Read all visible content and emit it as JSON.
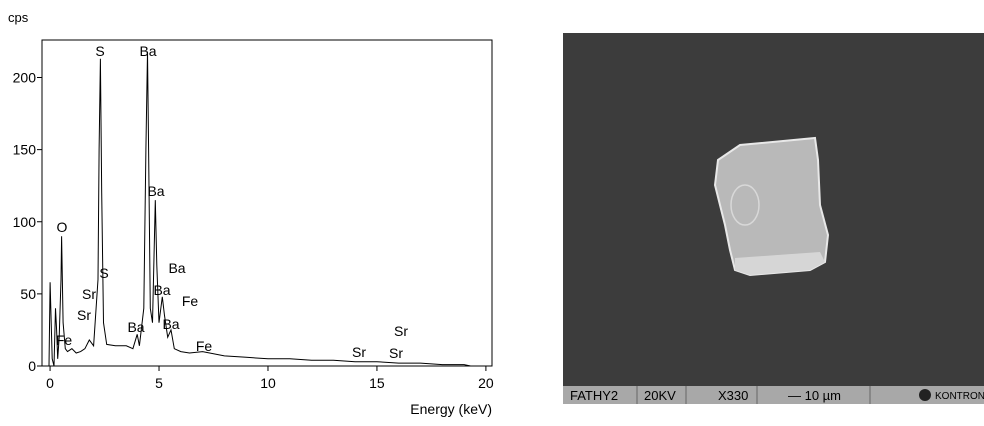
{
  "chart_data": {
    "type": "line",
    "y_label": "cps",
    "x_label": "Energy (keV)",
    "xlim": [
      -0.37,
      20.28
    ],
    "ylim": [
      0,
      226
    ],
    "xticks": [
      0,
      5,
      10,
      15,
      20
    ],
    "yticks": [
      0,
      50,
      100,
      150,
      200
    ],
    "color": "#000000",
    "x": [
      -0.05,
      0,
      0.05,
      0.1,
      0.18,
      0.25,
      0.3,
      0.35,
      0.42,
      0.5,
      0.53,
      0.6,
      0.7,
      0.8,
      1.0,
      1.2,
      1.4,
      1.6,
      1.8,
      2.0,
      2.2,
      2.25,
      2.31,
      2.37,
      2.45,
      2.6,
      3.0,
      3.5,
      3.8,
      4.0,
      4.1,
      4.3,
      4.4,
      4.47,
      4.52,
      4.6,
      4.7,
      4.83,
      4.9,
      5.0,
      5.15,
      5.25,
      5.4,
      5.55,
      5.7,
      6.0,
      6.4,
      7.0,
      8,
      9,
      10,
      11,
      12,
      13,
      14,
      15,
      16,
      17,
      18,
      19,
      19.3
    ],
    "values": [
      0,
      58,
      30,
      5,
      0,
      40,
      25,
      5,
      20,
      60,
      90,
      30,
      12,
      10,
      12,
      9,
      10,
      12,
      18,
      14,
      60,
      150,
      213,
      120,
      30,
      15,
      14,
      14,
      12,
      22,
      14,
      40,
      150,
      218,
      150,
      40,
      30,
      115,
      70,
      30,
      48,
      35,
      20,
      25,
      12,
      10,
      9,
      10,
      7,
      6,
      5,
      5,
      4,
      4,
      3,
      3,
      2,
      2,
      1,
      1,
      0
    ],
    "annotations": [
      "S",
      "Ba",
      "Ba",
      "O",
      "S",
      "Ba",
      "Sr",
      "Ba",
      "Fe",
      "Sr",
      "Ba",
      "Ba",
      "Fe",
      "Fe",
      "Sr",
      "Sr",
      "Sr"
    ]
  },
  "micrograph": {
    "labels": [
      "FATHY2",
      "20KV",
      "X330",
      "— 10 µm",
      "KONTRON"
    ]
  }
}
